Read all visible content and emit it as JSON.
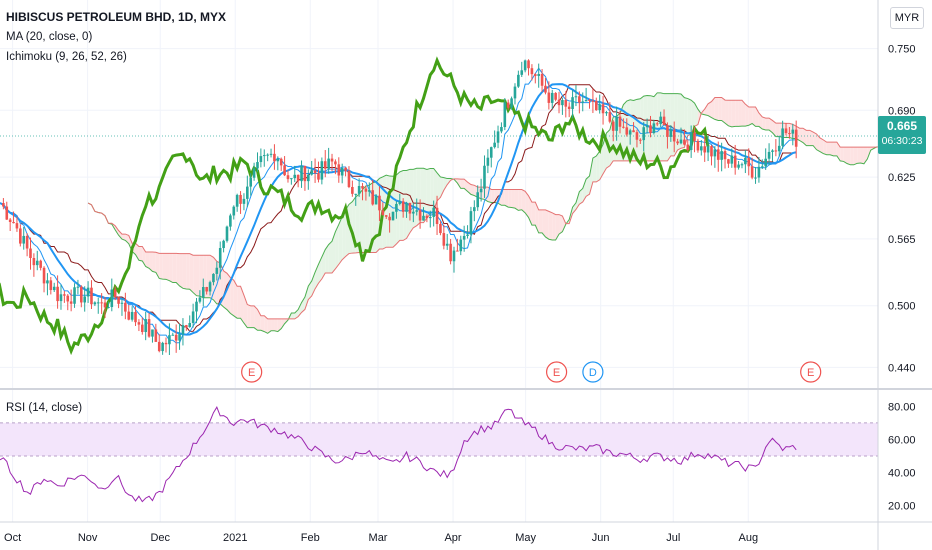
{
  "header": {
    "title": "HIBISCUS PETROLEUM BHD, 1D, MYX",
    "indicator_ma": "MA (20, close, 0)",
    "indicator_ichimoku": "Ichimoku (9, 26, 52, 26)",
    "indicator_rsi": "RSI (14, close)",
    "currency": "MYR"
  },
  "last_price": {
    "value": "0.665",
    "countdown": "06:30:23"
  },
  "colors": {
    "up": "#26a69a",
    "down": "#ef5350",
    "ma": "#2196f3",
    "lagging": "#43a016",
    "base": "#8b1a1a",
    "conversion": "#2196f3",
    "cloud_green": "#e6f4e6",
    "cloud_red": "#fde3e3",
    "rsi": "#9c27b0",
    "rsi_band": "#f3e5fb"
  },
  "chart_data": {
    "type": "candlestick",
    "price_axis": {
      "ticks": [
        "0.750",
        "0.690",
        "0.625",
        "0.565",
        "0.500",
        "0.440"
      ],
      "range": [
        0.42,
        0.77
      ]
    },
    "rsi_axis": {
      "ticks": [
        "80.00",
        "60.00",
        "40.00",
        "20.00"
      ],
      "range": [
        15,
        85
      ],
      "band": [
        50,
        70
      ]
    },
    "time_axis": [
      "Oct",
      "Nov",
      "Dec",
      "2021",
      "Feb",
      "Mar",
      "Apr",
      "May",
      "Jun",
      "Jul",
      "Aug"
    ],
    "events": [
      {
        "label": "E",
        "type": "earnings",
        "day": 104
      },
      {
        "label": "E",
        "type": "earnings",
        "day": 230
      },
      {
        "label": "D",
        "type": "dividend",
        "day": 245
      },
      {
        "label": "E",
        "type": "earnings",
        "day": 335
      }
    ],
    "price_anchors": [
      [
        0,
        0.6
      ],
      [
        6,
        0.58
      ],
      [
        12,
        0.55
      ],
      [
        18,
        0.53
      ],
      [
        24,
        0.51
      ],
      [
        30,
        0.51
      ],
      [
        36,
        0.51
      ],
      [
        42,
        0.5
      ],
      [
        48,
        0.51
      ],
      [
        54,
        0.49
      ],
      [
        60,
        0.48
      ],
      [
        66,
        0.46
      ],
      [
        72,
        0.47
      ],
      [
        78,
        0.49
      ],
      [
        84,
        0.51
      ],
      [
        90,
        0.54
      ],
      [
        96,
        0.6
      ],
      [
        102,
        0.61
      ],
      [
        108,
        0.64
      ],
      [
        114,
        0.65
      ],
      [
        120,
        0.62
      ],
      [
        126,
        0.63
      ],
      [
        132,
        0.63
      ],
      [
        138,
        0.64
      ],
      [
        144,
        0.62
      ],
      [
        150,
        0.61
      ],
      [
        156,
        0.6
      ],
      [
        162,
        0.59
      ],
      [
        168,
        0.6
      ],
      [
        174,
        0.59
      ],
      [
        180,
        0.59
      ],
      [
        186,
        0.55
      ],
      [
        192,
        0.57
      ],
      [
        198,
        0.61
      ],
      [
        204,
        0.66
      ],
      [
        210,
        0.7
      ],
      [
        216,
        0.74
      ],
      [
        222,
        0.72
      ],
      [
        228,
        0.7
      ],
      [
        234,
        0.69
      ],
      [
        240,
        0.7
      ],
      [
        246,
        0.69
      ],
      [
        252,
        0.68
      ],
      [
        258,
        0.67
      ],
      [
        264,
        0.66
      ],
      [
        270,
        0.68
      ],
      [
        276,
        0.67
      ],
      [
        282,
        0.66
      ],
      [
        288,
        0.66
      ],
      [
        294,
        0.65
      ],
      [
        300,
        0.64
      ],
      [
        306,
        0.64
      ],
      [
        312,
        0.63
      ],
      [
        318,
        0.65
      ],
      [
        324,
        0.67
      ],
      [
        330,
        0.66
      ]
    ],
    "rsi_anchors": [
      [
        0,
        50
      ],
      [
        6,
        38
      ],
      [
        12,
        27
      ],
      [
        18,
        37
      ],
      [
        24,
        32
      ],
      [
        30,
        37
      ],
      [
        36,
        38
      ],
      [
        42,
        30
      ],
      [
        48,
        38
      ],
      [
        54,
        25
      ],
      [
        60,
        22
      ],
      [
        66,
        28
      ],
      [
        72,
        40
      ],
      [
        78,
        52
      ],
      [
        84,
        65
      ],
      [
        90,
        78
      ],
      [
        96,
        70
      ],
      [
        102,
        72
      ],
      [
        108,
        68
      ],
      [
        114,
        66
      ],
      [
        120,
        62
      ],
      [
        126,
        58
      ],
      [
        132,
        52
      ],
      [
        138,
        47
      ],
      [
        144,
        48
      ],
      [
        150,
        54
      ],
      [
        156,
        48
      ],
      [
        162,
        45
      ],
      [
        168,
        50
      ],
      [
        174,
        46
      ],
      [
        180,
        40
      ],
      [
        186,
        38
      ],
      [
        192,
        60
      ],
      [
        198,
        66
      ],
      [
        204,
        68
      ],
      [
        210,
        78
      ],
      [
        216,
        70
      ],
      [
        222,
        65
      ],
      [
        228,
        57
      ],
      [
        234,
        55
      ],
      [
        240,
        54
      ],
      [
        246,
        55
      ],
      [
        252,
        52
      ],
      [
        258,
        51
      ],
      [
        264,
        48
      ],
      [
        270,
        50
      ],
      [
        276,
        49
      ],
      [
        282,
        47
      ],
      [
        288,
        52
      ],
      [
        294,
        50
      ],
      [
        300,
        46
      ],
      [
        306,
        44
      ],
      [
        312,
        42
      ],
      [
        318,
        60
      ],
      [
        324,
        54
      ],
      [
        330,
        56
      ]
    ]
  }
}
